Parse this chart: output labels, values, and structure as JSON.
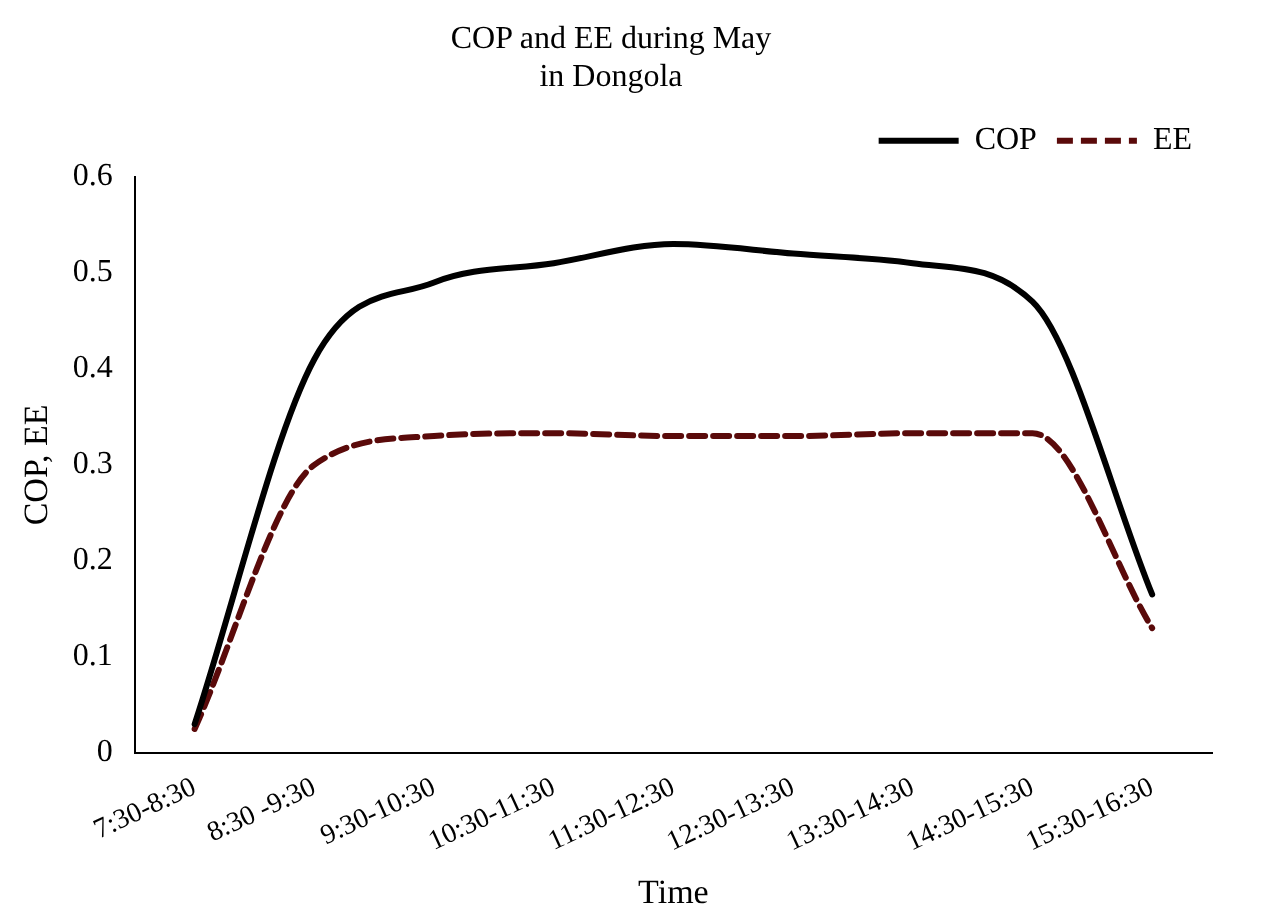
{
  "chart_data": {
    "type": "line",
    "title": "COP and EE during May\nin Dongola",
    "xlabel": "Time",
    "ylabel": "COP, EE",
    "categories": [
      "7:30-8:30",
      "8:30 -9:30",
      "9:30-10:30",
      "10:30-11:30",
      "11:30-12:30",
      "12:30-13:30",
      "13:30-14:30",
      "14:30-15:30",
      "15:30-16:30"
    ],
    "series": [
      {
        "name": "COP",
        "color": "#000000",
        "line_style": "solid",
        "values": [
          0.03,
          0.41,
          0.49,
          0.51,
          0.53,
          0.52,
          0.51,
          0.47,
          0.165
        ]
      },
      {
        "name": "EE",
        "color": "#5a0a0a",
        "line_style": "dashed",
        "values": [
          0.025,
          0.3,
          0.33,
          0.333,
          0.33,
          0.33,
          0.333,
          0.333,
          0.13
        ]
      }
    ],
    "ylim": [
      0,
      0.6
    ],
    "yticks": [
      0,
      0.1,
      0.2,
      0.3,
      0.4,
      0.5,
      0.6
    ],
    "grid": false,
    "legend": "top right",
    "marker": "none"
  }
}
